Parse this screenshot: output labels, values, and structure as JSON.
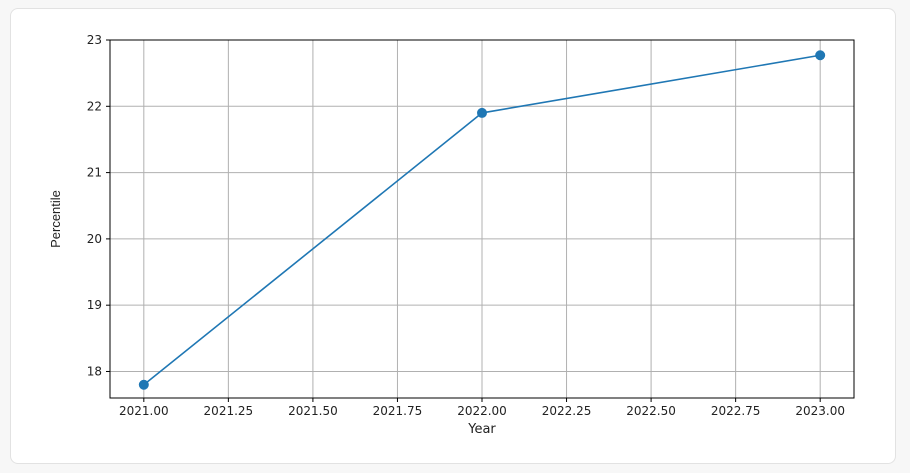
{
  "chart_data": {
    "type": "line",
    "title": "",
    "xlabel": "Year",
    "ylabel": "Percentile",
    "xlim": [
      2020.9,
      2023.1
    ],
    "ylim": [
      17.6,
      23.0
    ],
    "grid": true,
    "x_ticks": [
      2021.0,
      2021.25,
      2021.5,
      2021.75,
      2022.0,
      2022.25,
      2022.5,
      2022.75,
      2023.0
    ],
    "x_tick_labels": [
      "2021.00",
      "2021.25",
      "2021.50",
      "2021.75",
      "2022.00",
      "2022.25",
      "2022.50",
      "2022.75",
      "2023.00"
    ],
    "y_ticks": [
      18,
      19,
      20,
      21,
      22,
      23
    ],
    "y_tick_labels": [
      "18",
      "19",
      "20",
      "21",
      "22",
      "23"
    ],
    "series": [
      {
        "x": [
          2021,
          2022,
          2023
        ],
        "values": [
          17.8,
          21.9,
          22.77
        ],
        "color": "#1f77b4",
        "marker": "circle"
      }
    ]
  }
}
